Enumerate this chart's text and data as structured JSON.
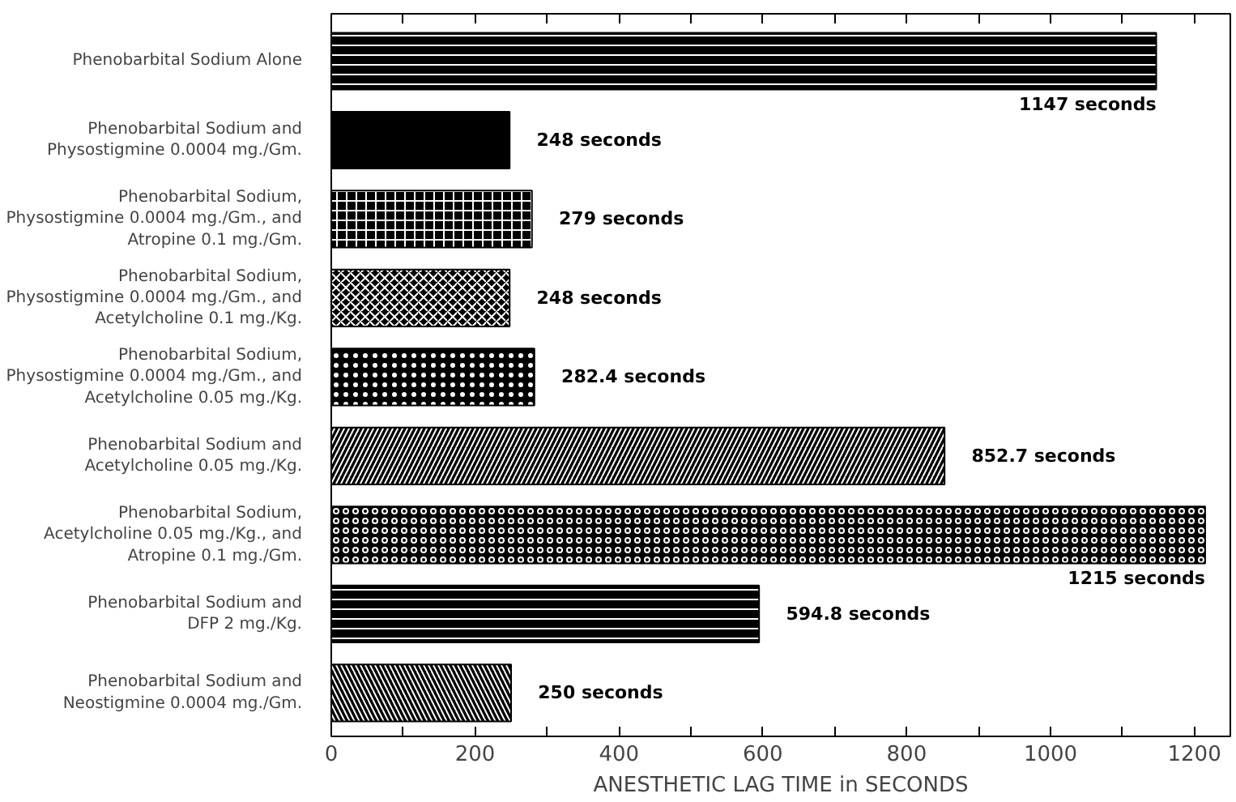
{
  "chart_data": {
    "type": "bar",
    "orientation": "horizontal",
    "xlabel": "ANESTHETIC LAG TIME in SECONDS",
    "categories": [
      "Phenobarbital Sodium Alone",
      "Phenobarbital Sodium and\nPhysostigmine 0.0004 mg./Gm.",
      "Phenobarbital Sodium,\nPhysostigmine 0.0004 mg./Gm., and\nAtropine 0.1 mg./Gm.",
      "Phenobarbital Sodium,\nPhysostigmine 0.0004 mg./Gm., and\nAcetylcholine 0.1 mg./Kg.",
      "Phenobarbital Sodium,\nPhysostigmine 0.0004 mg./Gm., and\nAcetylcholine 0.05 mg./Kg.",
      "Phenobarbital Sodium and\nAcetylcholine 0.05 mg./Kg.",
      "Phenobarbital Sodium,\nAcetylcholine 0.05 mg./Kg., and\nAtropine 0.1 mg./Gm.",
      "Phenobarbital Sodium and\nDFP 2 mg./Kg.",
      "Phenobarbital Sodium and\nNeostigmine 0.0004 mg./Gm."
    ],
    "values": [
      1147,
      248,
      279,
      248,
      282.4,
      852.7,
      1215,
      594.8,
      250
    ],
    "value_labels": [
      "1147 seconds",
      "248 seconds",
      "279 seconds",
      "248 seconds",
      "282.4 seconds",
      "852.7 seconds",
      "1215 seconds",
      "594.8 seconds",
      "250 seconds"
    ],
    "color": "#000000",
    "xlim": [
      0,
      1250
    ],
    "xticks": [
      0,
      {
        "value": 100,
        "label": null
      },
      200,
      {
        "value": 300,
        "label": null
      },
      400,
      {
        "value": 500,
        "label": null
      },
      600,
      {
        "value": 700,
        "label": null
      },
      800,
      {
        "value": 900,
        "label": null
      },
      1000,
      {
        "value": 1100,
        "label": null
      },
      1200
    ],
    "grid": false
  }
}
